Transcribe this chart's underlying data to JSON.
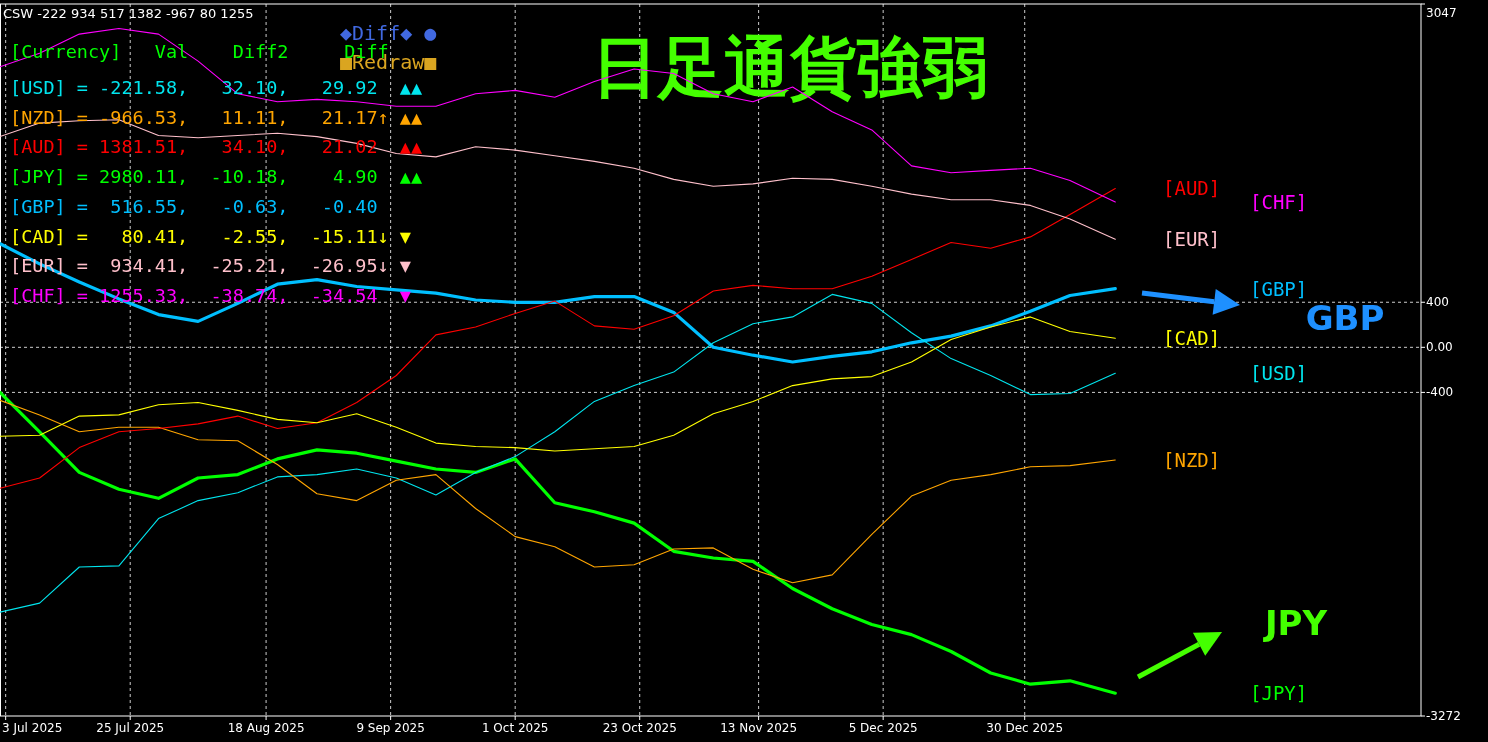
{
  "chart_data": {
    "type": "line",
    "title": "日足通貨強弱",
    "x": [
      "2025-07-02",
      "2025-07-09",
      "2025-07-16",
      "2025-07-23",
      "2025-07-30",
      "2025-08-06",
      "2025-08-13",
      "2025-08-20",
      "2025-08-27",
      "2025-09-03",
      "2025-09-10",
      "2025-09-17",
      "2025-09-24",
      "2025-10-01",
      "2025-10-08",
      "2025-10-15",
      "2025-10-22",
      "2025-10-29",
      "2025-11-05",
      "2025-11-12",
      "2025-11-19",
      "2025-11-26",
      "2025-12-03",
      "2025-12-10",
      "2025-12-17",
      "2025-12-24",
      "2025-12-31",
      "2026-01-07",
      "2026-01-15"
    ],
    "xlim": [
      "2025-07-02",
      "2026-03-10"
    ],
    "xticks": [
      {
        "value": "2025-07-03",
        "label": "3 Jul 2025"
      },
      {
        "value": "2025-07-25",
        "label": "25 Jul 2025"
      },
      {
        "value": "2025-08-18",
        "label": "18 Aug 2025"
      },
      {
        "value": "2025-09-09",
        "label": "9 Sep 2025"
      },
      {
        "value": "2025-10-01",
        "label": "1 Oct 2025"
      },
      {
        "value": "2025-10-23",
        "label": "23 Oct 2025"
      },
      {
        "value": "2025-11-13",
        "label": "13 Nov 2025"
      },
      {
        "value": "2025-12-05",
        "label": "5 Dec 2025"
      },
      {
        "value": "2025-12-30",
        "label": "30 Dec 2025"
      }
    ],
    "ylim": [
      -3272,
      3047
    ],
    "yticks": [
      -3272,
      -400,
      {
        "value": 0,
        "label": "0.00"
      },
      400,
      3047
    ],
    "grid": true,
    "series": [
      {
        "name": "[USD]",
        "color": "#00e5ee",
        "values": [
          -2350,
          -2270,
          -1950,
          -1940,
          -1520,
          -1360,
          -1290,
          -1150,
          -1130,
          -1080,
          -1160,
          -1310,
          -1110,
          -970,
          -750,
          -480,
          -340,
          -220,
          40,
          210,
          270,
          470,
          390,
          130,
          -100,
          -250,
          -420,
          -410,
          -230
        ]
      },
      {
        "name": "[NZD]",
        "color": "#ffa500",
        "values": [
          -470,
          -600,
          -750,
          -710,
          -710,
          -820,
          -830,
          -1040,
          -1300,
          -1360,
          -1180,
          -1130,
          -1430,
          -1680,
          -1770,
          -1950,
          -1930,
          -1790,
          -1780,
          -1970,
          -2090,
          -2020,
          -1660,
          -1320,
          -1180,
          -1130,
          -1060,
          -1050,
          -1000
        ]
      },
      {
        "name": "[AUD]",
        "color": "#ff0000",
        "values": [
          -1250,
          -1160,
          -890,
          -750,
          -720,
          -680,
          -610,
          -720,
          -670,
          -490,
          -250,
          110,
          180,
          300,
          410,
          190,
          160,
          280,
          500,
          550,
          520,
          520,
          630,
          780,
          930,
          880,
          980,
          1180,
          1410
        ]
      },
      {
        "name": "[JPY]",
        "color": "#00ff00",
        "values": [
          -400,
          -750,
          -1110,
          -1260,
          -1340,
          -1160,
          -1130,
          -990,
          -910,
          -940,
          -1010,
          -1080,
          -1110,
          -990,
          -1380,
          -1460,
          -1560,
          -1810,
          -1870,
          -1900,
          -2140,
          -2320,
          -2460,
          -2550,
          -2700,
          -2890,
          -2990,
          -2960,
          -3070
        ]
      },
      {
        "name": "[GBP]",
        "color": "#00bfff",
        "values": [
          920,
          740,
          580,
          430,
          290,
          230,
          390,
          560,
          600,
          540,
          510,
          480,
          420,
          400,
          400,
          450,
          450,
          310,
          0,
          -70,
          -130,
          -80,
          -40,
          40,
          100,
          190,
          320,
          460,
          520
        ]
      },
      {
        "name": "[CAD]",
        "color": "#ffff00",
        "values": [
          -790,
          -780,
          -610,
          -600,
          -510,
          -490,
          -560,
          -640,
          -670,
          -590,
          -710,
          -850,
          -880,
          -890,
          -920,
          -900,
          -880,
          -780,
          -590,
          -480,
          -340,
          -280,
          -260,
          -130,
          70,
          180,
          270,
          140,
          80
        ]
      },
      {
        "name": "[EUR]",
        "color": "#ffc0cb",
        "values": [
          1870,
          1990,
          2010,
          2020,
          1880,
          1860,
          1880,
          1900,
          1870,
          1810,
          1720,
          1690,
          1780,
          1750,
          1700,
          1650,
          1590,
          1490,
          1430,
          1450,
          1500,
          1490,
          1430,
          1360,
          1310,
          1310,
          1260,
          1140,
          960
        ]
      },
      {
        "name": "[CHF]",
        "color": "#ff00ff",
        "values": [
          2490,
          2610,
          2780,
          2830,
          2780,
          2540,
          2250,
          2180,
          2200,
          2180,
          2140,
          2140,
          2250,
          2280,
          2220,
          2360,
          2470,
          2430,
          2250,
          2180,
          2310,
          2090,
          1930,
          1610,
          1550,
          1570,
          1590,
          1480,
          1290
        ]
      }
    ],
    "annotations": [
      "CSW -222 934 517 1382 -967 80 1255",
      "◆Diff◆ ●",
      "■Redraw■",
      "[Currency]   Val    Diff2     Diff",
      "[USD] = -221.58,   32.10,   29.92  ▲▲",
      "[NZD] = -966.53,   11.11,   21.17↑ ▲▲",
      "[AUD] = 1381.51,   34.10,   21.02  ▲▲",
      "[JPY] = 2980.11,  -10.18,    4.90  ▲▲",
      "[GBP] =  516.55,   -0.63,   -0.40",
      "[CAD] =   80.41,   -2.55,  -15.11↓ ▼",
      "[EUR] =  934.41,  -25.21,  -26.95↓ ▼",
      "[CHF] = 1255.33,  -38.74,  -34.54  ▼",
      "GBP",
      "JPY"
    ]
  }
}
